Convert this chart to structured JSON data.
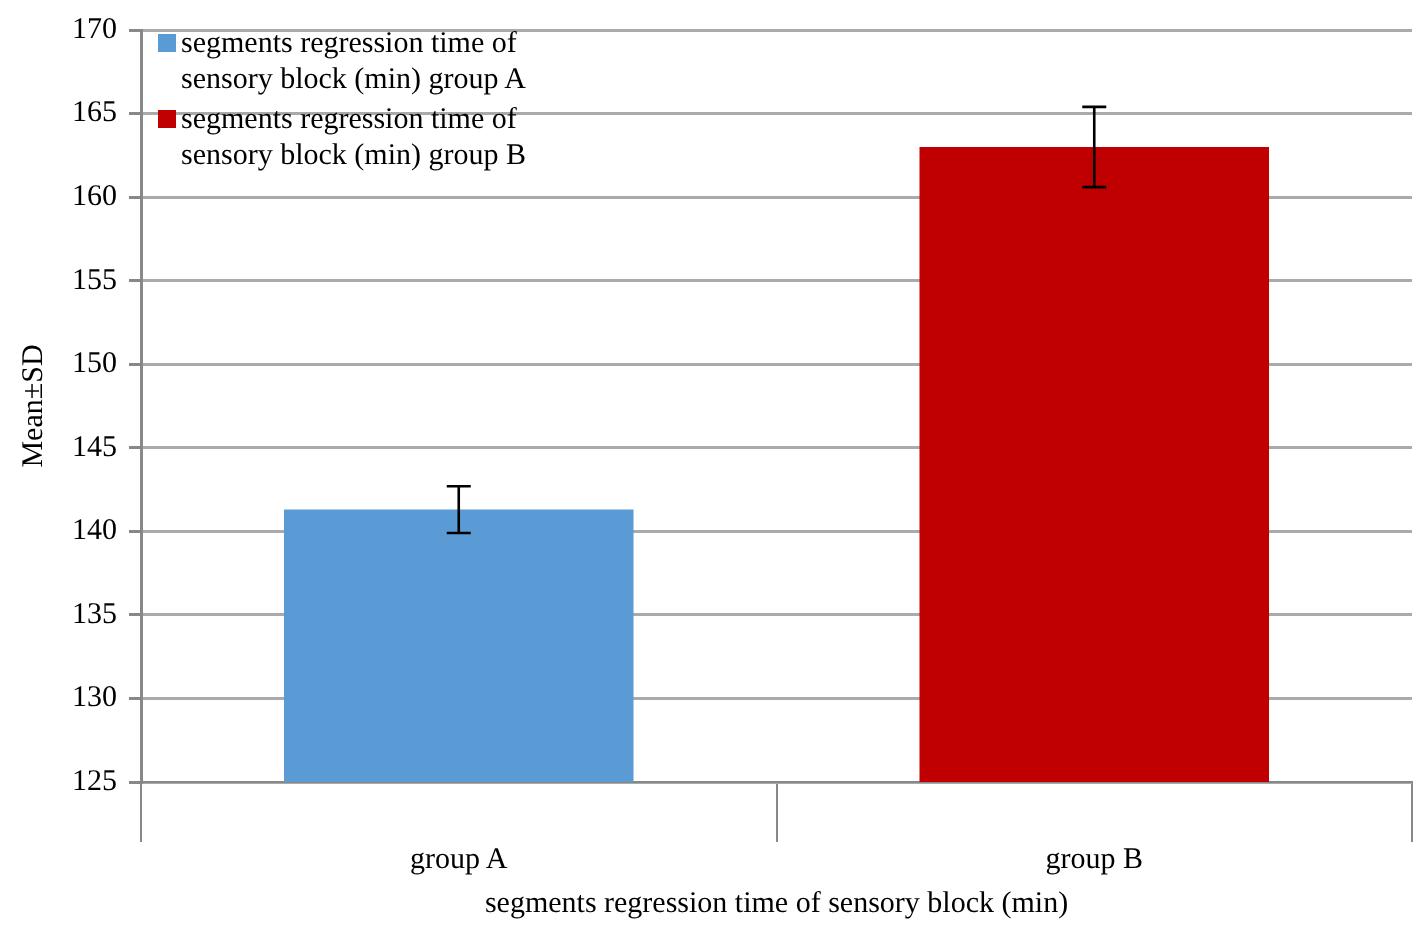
{
  "chart_data": {
    "type": "bar",
    "xlabel": "segments regression time of sensory block (min)",
    "ylabel": "Mean±SD",
    "categories": [
      "group A",
      "group B"
    ],
    "series": [
      {
        "name": "segments regression time of sensory block (min) group A",
        "color": "#5b9bd5",
        "values": [
          141.3,
          null
        ],
        "errors": [
          1.4,
          null
        ]
      },
      {
        "name": "segments regression time of sensory block (min) group B",
        "color": "#c00000",
        "values": [
          null,
          163.0
        ],
        "errors": [
          null,
          2.4
        ]
      }
    ],
    "ylim": [
      125,
      170
    ],
    "yticks": [
      125,
      130,
      135,
      140,
      145,
      150,
      155,
      160,
      165,
      170
    ],
    "grid": "y",
    "legend": "top left"
  }
}
